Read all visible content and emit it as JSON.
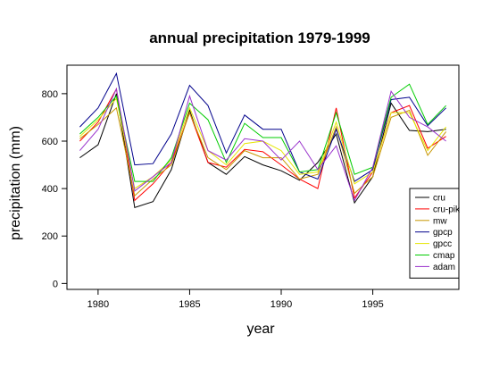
{
  "chart_data": {
    "type": "line",
    "title": "annual precipitation 1979-1999",
    "xlabel": "year",
    "ylabel": "precipitation (mm)",
    "x": [
      1979,
      1980,
      1981,
      1982,
      1983,
      1984,
      1985,
      1986,
      1987,
      1988,
      1989,
      1990,
      1991,
      1992,
      1993,
      1994,
      1995,
      1996,
      1997,
      1998,
      1999
    ],
    "xlim": [
      1978.3,
      1999.7
    ],
    "ylim": [
      -25,
      920
    ],
    "xticks": [
      1980,
      1985,
      1990,
      1995
    ],
    "yticks": [
      0,
      200,
      400,
      600,
      800
    ],
    "grid": false,
    "legend": "bottom-right",
    "series": [
      {
        "name": "cru",
        "color": "#000000",
        "values": [
          530,
          585,
          800,
          320,
          345,
          480,
          730,
          510,
          460,
          535,
          500,
          475,
          435,
          510,
          630,
          340,
          450,
          760,
          645,
          640,
          650
        ]
      },
      {
        "name": "cru-pik",
        "color": "#ff0000",
        "values": [
          600,
          680,
          820,
          350,
          420,
          510,
          720,
          510,
          490,
          565,
          555,
          500,
          440,
          400,
          740,
          360,
          470,
          720,
          750,
          570,
          620
        ]
      },
      {
        "name": "mw",
        "color": "#c89600",
        "values": [
          610,
          670,
          740,
          370,
          440,
          500,
          720,
          530,
          480,
          560,
          530,
          530,
          440,
          460,
          660,
          380,
          450,
          700,
          730,
          540,
          640
        ]
      },
      {
        "name": "gpcp",
        "color": "#00008b",
        "values": [
          660,
          740,
          885,
          500,
          505,
          630,
          835,
          750,
          550,
          710,
          650,
          650,
          470,
          440,
          650,
          430,
          480,
          775,
          785,
          665,
          740
        ]
      },
      {
        "name": "gpcc",
        "color": "#e6e600",
        "values": [
          620,
          690,
          780,
          400,
          450,
          520,
          740,
          560,
          500,
          590,
          600,
          560,
          460,
          470,
          680,
          420,
          470,
          720,
          720,
          560,
          660
        ]
      },
      {
        "name": "cmap",
        "color": "#00cc00",
        "values": [
          630,
          700,
          790,
          430,
          430,
          530,
          760,
          690,
          510,
          675,
          615,
          615,
          470,
          480,
          720,
          460,
          490,
          785,
          840,
          670,
          750
        ]
      },
      {
        "name": "adam",
        "color": "#9932cc",
        "values": [
          560,
          650,
          820,
          390,
          450,
          510,
          790,
          560,
          520,
          610,
          600,
          520,
          600,
          480,
          580,
          350,
          490,
          810,
          700,
          660,
          600
        ]
      }
    ]
  }
}
